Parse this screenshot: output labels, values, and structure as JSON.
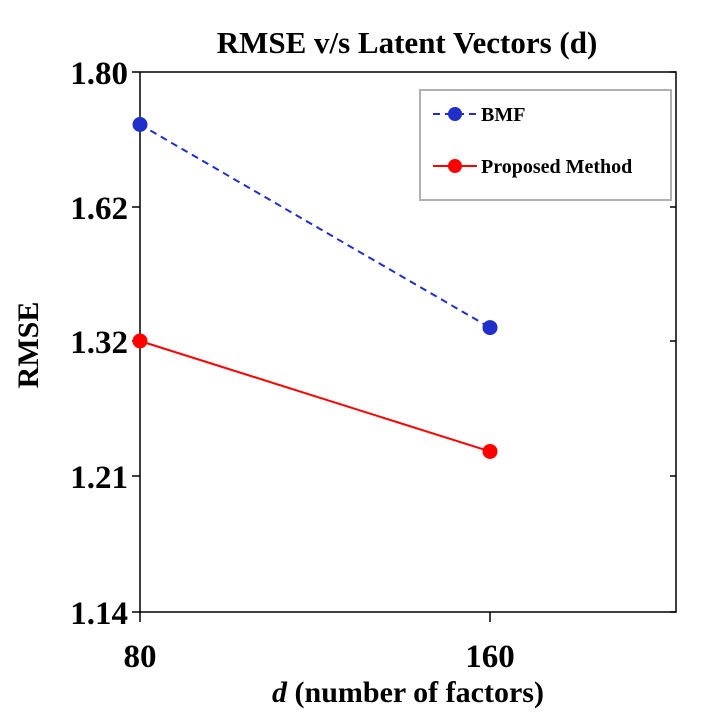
{
  "chart_data": {
    "type": "line",
    "title": "RMSE v/s Latent Vectors (d)",
    "ylabel": "RMSE",
    "xlabel_prefix": "d",
    "xlabel_rest": " (number of factors)",
    "x_ticks": [
      "80",
      "160"
    ],
    "y_ticks": [
      "1.80",
      "1.62",
      "1.32",
      "1.21",
      "1.14"
    ],
    "legend_position": "top-right",
    "grid": false,
    "series": [
      {
        "name": "BMF",
        "color": "#1f2fc8",
        "line_style": "dashed",
        "points": [
          {
            "x": 80,
            "y": 1.73
          },
          {
            "x": 160,
            "y": 1.35
          }
        ]
      },
      {
        "name": "Proposed Method",
        "color": "#ff0000",
        "line_style": "solid",
        "points": [
          {
            "x": 80,
            "y": 1.32
          },
          {
            "x": 160,
            "y": 1.23
          }
        ]
      }
    ]
  }
}
